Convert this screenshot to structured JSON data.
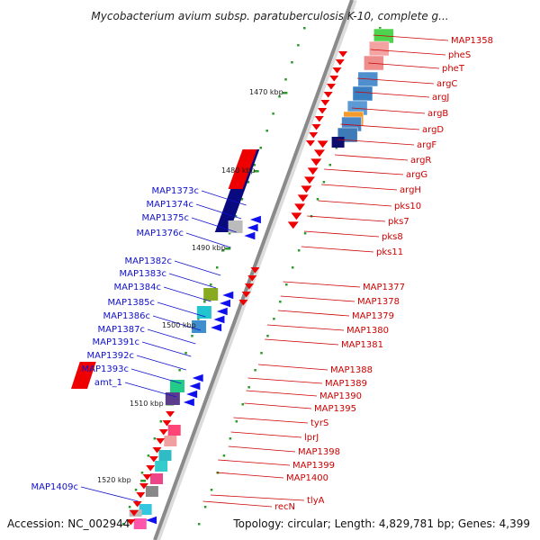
{
  "title": "Mycobacterium avium subsp. paratuberculosis K-10, complete g...",
  "accession": "Accession: NC_002944",
  "topology": "Topology: circular; Length: 4,829,781 bp; Genes: 4,399",
  "colors": {
    "backbone": "#8a8a8a",
    "forward_gene": "#ee0000",
    "reverse_gene": "#1010ee",
    "kbp_tick": "#2a9a2a",
    "label_forward": "#cc0000",
    "label_reverse": "#1010cc"
  },
  "kbp_labels": [
    "1470 kbp",
    "1480 kbp",
    "1490 kbp",
    "1500 kbp",
    "1510 kbp",
    "1520 kbp"
  ],
  "right_labels": [
    "MAP1358",
    "pheS",
    "pheT",
    "argC",
    "argJ",
    "argB",
    "argD",
    "argF",
    "argR",
    "argG",
    "argH",
    "pks10",
    "pks7",
    "pks8",
    "pks11",
    "MAP1377",
    "MAP1378",
    "MAP1379",
    "MAP1380",
    "MAP1381",
    "MAP1388",
    "MAP1389",
    "MAP1390",
    "MAP1395",
    "tyrS",
    "lprJ",
    "MAP1398",
    "MAP1399",
    "MAP1400",
    "tlyA",
    "recN"
  ],
  "left_labels": [
    "MAP1373c",
    "MAP1374c",
    "MAP1375c",
    "MAP1376c",
    "MAP1382c",
    "MAP1383c",
    "MAP1384c",
    "MAP1385c",
    "MAP1386c",
    "MAP1387c",
    "MAP1391c",
    "MAP1392c",
    "MAP1393c",
    "amt_1",
    "MAP1409c"
  ]
}
